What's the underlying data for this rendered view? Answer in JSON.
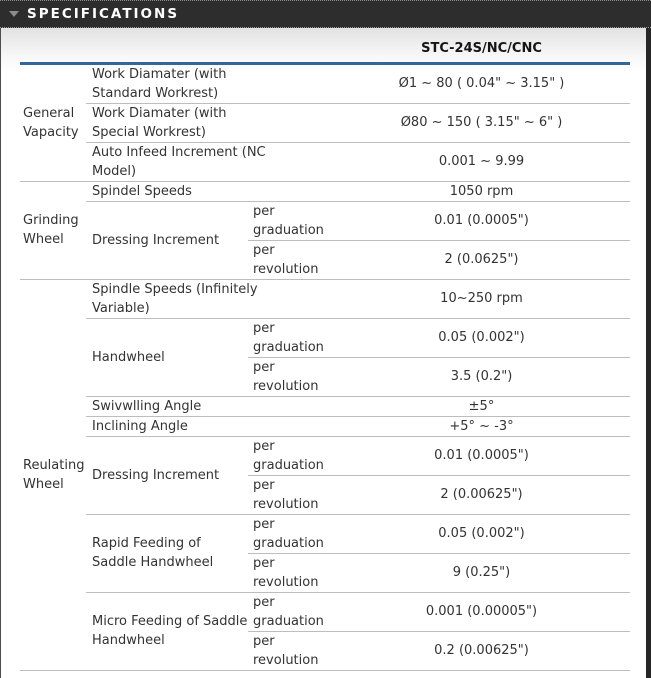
{
  "header": {
    "title": "SPECIFICATIONS",
    "collapse_icon": "triangle-down"
  },
  "colors": {
    "bar_background": "#2d2d2d",
    "accent_blue": "#336699",
    "row_divider": "#bdbdbd"
  },
  "table": {
    "model_header": "STC-24S/NC/CNC",
    "sub_labels": {
      "graduation": "per graduation",
      "revolution": "per revolution"
    },
    "groups": [
      {
        "label": "General Vapacity",
        "rows": [
          {
            "label": "Work Diamater (with Standard Workrest)",
            "value": "Ø1 ~ 80 ( 0.04\" ~ 3.15\" )"
          },
          {
            "label": "Work Diamater (with Special Workrest)",
            "value": "Ø80 ~ 150 ( 3.15\" ~ 6\" )"
          },
          {
            "label": "Auto Infeed Increment (NC Model)",
            "value": "0.001 ~ 9.99"
          }
        ]
      },
      {
        "label": "Grinding Wheel",
        "rows": [
          {
            "label": "Spindel Speeds",
            "value": "1050 rpm"
          },
          {
            "label": "Dressing Increment",
            "subs": [
              {
                "label": "per graduation",
                "value": "0.01 (0.0005\")"
              },
              {
                "label": "per revolution",
                "value": "2 (0.0625\")"
              }
            ]
          }
        ]
      },
      {
        "label": "Reulating Wheel",
        "rows": [
          {
            "label": "Spindle Speeds (Infinitely Variable)",
            "value": "10~250 rpm"
          },
          {
            "label": "Handwheel",
            "subs": [
              {
                "label": "per graduation",
                "value": "0.05 (0.002\")"
              },
              {
                "label": "per revolution",
                "value": "3.5 (0.2\")"
              }
            ]
          },
          {
            "label": "Swivwlling Angle",
            "value": "±5°"
          },
          {
            "label": "Inclining Angle",
            "value": "+5° ~ -3°"
          },
          {
            "label": "Dressing Increment",
            "subs": [
              {
                "label": "per graduation",
                "value": "0.01 (0.0005\")"
              },
              {
                "label": "per revolution",
                "value": "2 (0.00625\")"
              }
            ]
          },
          {
            "label": "Rapid Feeding of Saddle Handwheel",
            "subs": [
              {
                "label": "per graduation",
                "value": "0.05 (0.002\")"
              },
              {
                "label": "per revolution",
                "value": "9 (0.25\")"
              }
            ]
          },
          {
            "label": "Micro Feeding of Saddle Handwheel",
            "subs": [
              {
                "label": "per graduation",
                "value": "0.001 (0.00005\")"
              },
              {
                "label": "per revolution",
                "value": "0.2 (0.00625\")"
              }
            ]
          }
        ]
      }
    ]
  }
}
